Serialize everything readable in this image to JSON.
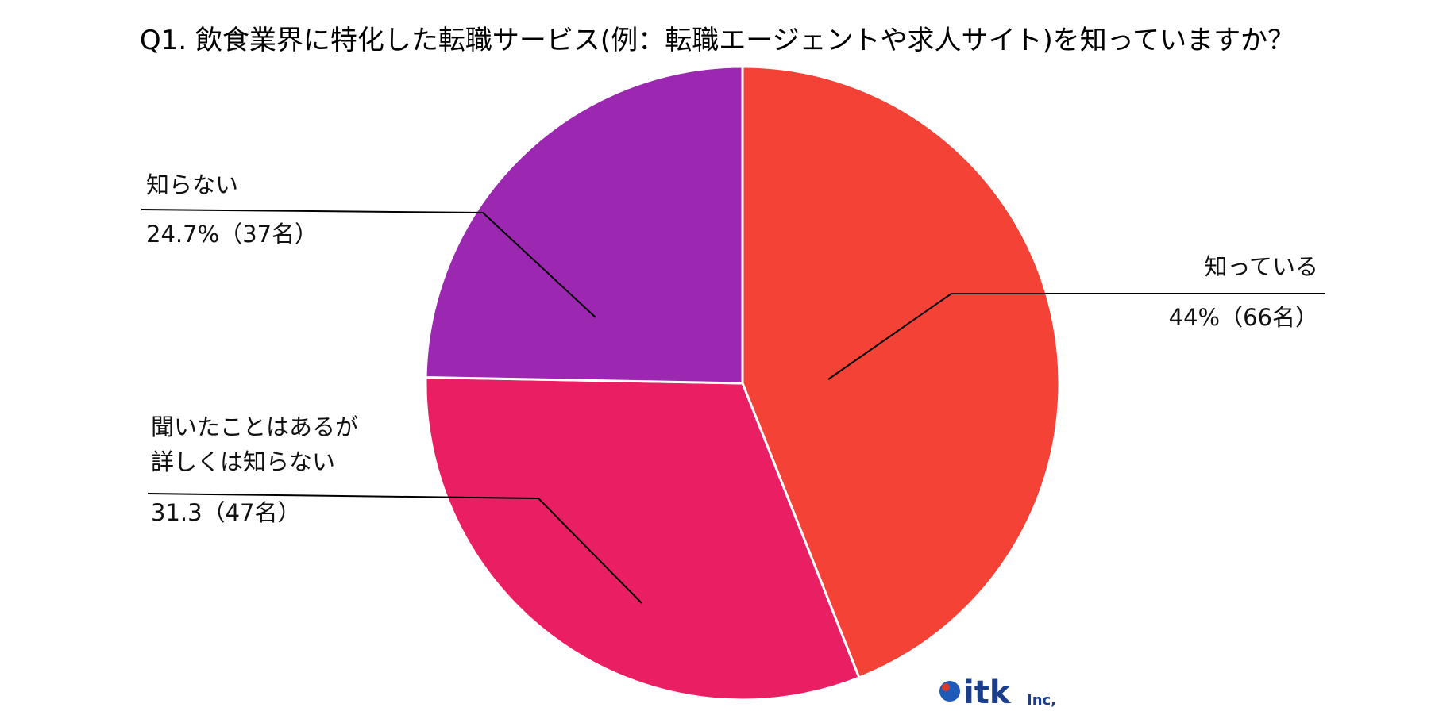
{
  "chart_data": {
    "type": "pie",
    "title": "Q1. 飲食業界に特化した転職サービス(例：転職エージェントや求人サイト)を知っていますか？",
    "slices": [
      {
        "label_lines": [
          "知っている"
        ],
        "value_text": "44%（66名）",
        "value": 44.0,
        "count": 66,
        "color": "#f44336"
      },
      {
        "label_lines": [
          "聞いたことはあるが",
          "詳しくは知らない"
        ],
        "value_text": "31.3（47名）",
        "value": 31.3,
        "count": 47,
        "color": "#e91e63"
      },
      {
        "label_lines": [
          "知らない"
        ],
        "value_text": "24.7%（37名）",
        "value": 24.7,
        "count": 37,
        "color": "#9c27b0"
      }
    ],
    "start_angle": "12 o'clock",
    "direction": "clockwise",
    "legend": "none"
  },
  "logo": {
    "main": "itk",
    "suffix": "Inc,"
  }
}
